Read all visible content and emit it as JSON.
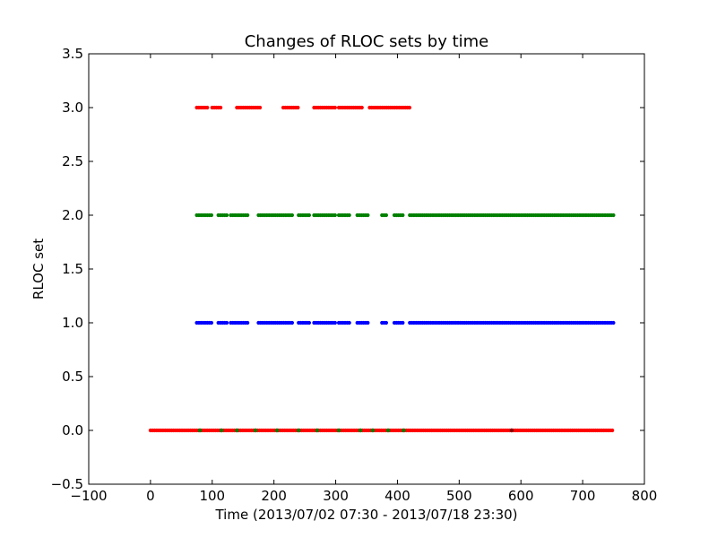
{
  "chart_data": {
    "type": "scatter",
    "title": "Changes of RLOC sets by time",
    "xlabel": "Time (2013/07/02 07:30 - 2013/07/18 23:30)",
    "ylabel": "RLOC set",
    "xlim": [
      -100,
      800
    ],
    "ylim": [
      -0.5,
      3.5
    ],
    "xticks": [
      -100,
      0,
      100,
      200,
      300,
      400,
      500,
      600,
      700,
      800
    ],
    "yticks": [
      -0.5,
      0.0,
      0.5,
      1.0,
      1.5,
      2.0,
      2.5,
      3.0,
      3.5
    ],
    "xtick_labels": [
      "−100",
      "0",
      "100",
      "200",
      "300",
      "400",
      "500",
      "600",
      "700",
      "800"
    ],
    "ytick_labels": [
      "−0.5",
      "0.0",
      "0.5",
      "1.0",
      "1.5",
      "2.0",
      "2.5",
      "3.0",
      "3.5"
    ],
    "grid": false,
    "series": [
      {
        "color": "#ff0000",
        "points": [
          {
            "y": 0,
            "segments": [
              [
                0,
                750
              ]
            ]
          },
          {
            "y": 3,
            "segments": [
              [
                75,
                95
              ],
              [
                100,
                115
              ],
              [
                140,
                180
              ],
              [
                215,
                240
              ],
              [
                265,
                300
              ],
              [
                305,
                345
              ],
              [
                355,
                420
              ]
            ]
          }
        ]
      },
      {
        "color": "#008000",
        "points": [
          {
            "y": 2,
            "segments": [
              [
                75,
                100
              ],
              [
                110,
                125
              ],
              [
                130,
                160
              ],
              [
                175,
                230
              ],
              [
                240,
                260
              ],
              [
                265,
                300
              ],
              [
                305,
                325
              ],
              [
                335,
                355
              ],
              [
                375,
                385
              ],
              [
                395,
                410
              ],
              [
                420,
                750
              ]
            ]
          },
          {
            "y": 0,
            "scattered": [
              80,
              115,
              140,
              170,
              205,
              240,
              270,
              305,
              340,
              360,
              385,
              410
            ]
          }
        ]
      },
      {
        "color": "#0000ff",
        "points": [
          {
            "y": 1,
            "segments": [
              [
                75,
                100
              ],
              [
                110,
                125
              ],
              [
                130,
                160
              ],
              [
                175,
                230
              ],
              [
                240,
                260
              ],
              [
                265,
                300
              ],
              [
                305,
                325
              ],
              [
                335,
                355
              ],
              [
                375,
                385
              ],
              [
                395,
                410
              ],
              [
                420,
                750
              ]
            ]
          }
        ]
      },
      {
        "color": "#800000",
        "points": [
          {
            "y": 0,
            "scattered": [
              585
            ]
          }
        ]
      }
    ]
  }
}
